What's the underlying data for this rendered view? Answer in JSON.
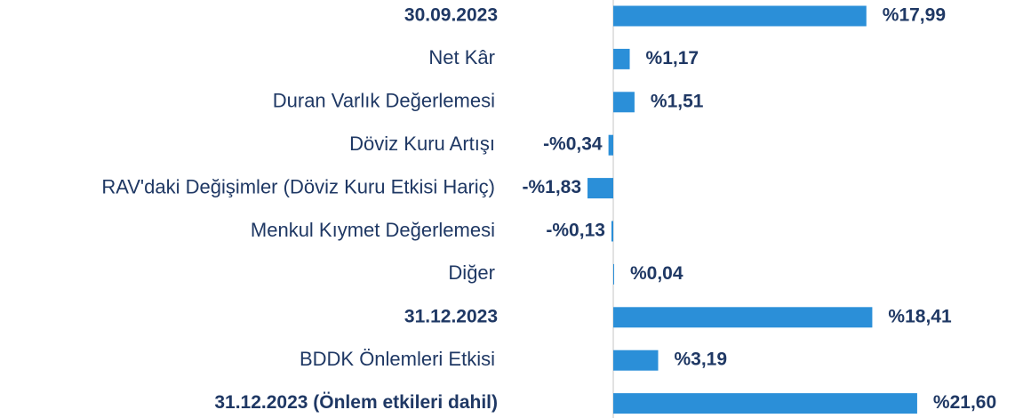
{
  "chart_data": {
    "type": "barh",
    "categories": [
      "30.09.2023",
      "Net Kâr",
      "Duran Varlık Değerlemesi",
      "Döviz Kuru Artışı",
      "RAV'daki Değişimler (Döviz Kuru Etkisi Hariç)",
      "Menkul Kıymet Değerlemesi",
      "Diğer",
      "31.12.2023",
      "BDDK Önlemleri Etkisi",
      "31.12.2023 (Önlem etkileri dahil)"
    ],
    "values": [
      17.99,
      1.17,
      1.51,
      -0.34,
      -1.83,
      -0.13,
      0.04,
      18.41,
      3.19,
      21.6
    ],
    "value_labels": [
      "%17,99",
      "%1,17",
      "%1,51",
      "-%0,34",
      "-%1,83",
      "-%0,13",
      "%0,04",
      "%18,41",
      "%3,19",
      "%21,60"
    ],
    "bold": [
      true,
      false,
      false,
      false,
      false,
      false,
      false,
      true,
      false,
      true
    ],
    "color": "#2b8fd8",
    "xlim": [
      -2,
      24
    ]
  }
}
